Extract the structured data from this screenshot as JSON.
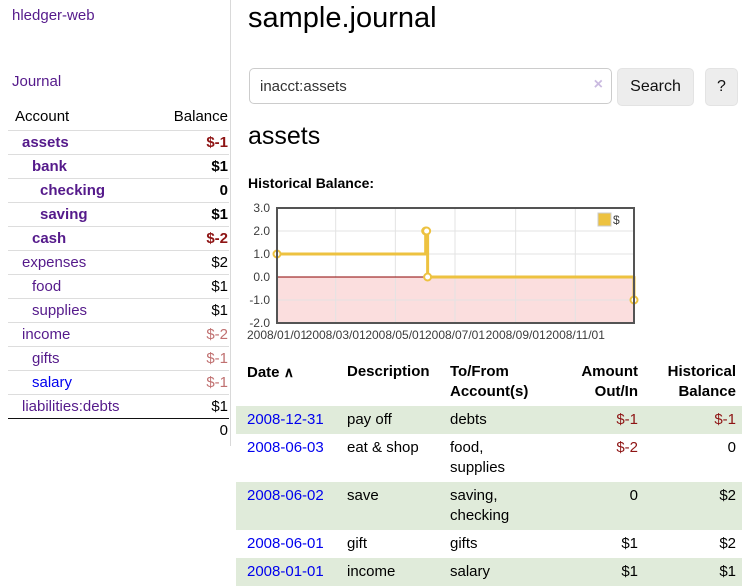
{
  "colors": {
    "link_purple": "#551a8b",
    "link_blue": "#0000ee",
    "neg_dark": "#8e1414",
    "neg_muted": "#c07070",
    "row_green": "#e0ebda",
    "chart_line": "#edc240",
    "chart_neg_fill": "#fbdede",
    "chart_zero_line": "#8b0000",
    "chart_grid": "#e3e3e3",
    "chart_border": "#545454"
  },
  "sidebar": {
    "brand": "hledger-web",
    "journal_link": "Journal",
    "accounts_table": {
      "headers": {
        "account": "Account",
        "balance": "Balance"
      },
      "rows": [
        {
          "account": "assets",
          "balance": "$-1",
          "indent": 1,
          "bold": true,
          "balance_color": "neg_dark"
        },
        {
          "account": "bank",
          "balance": "$1",
          "indent": 2,
          "bold": true
        },
        {
          "account": "checking",
          "balance": "0",
          "indent": 3,
          "bold": true
        },
        {
          "account": "saving",
          "balance": "$1",
          "indent": 3,
          "bold": true
        },
        {
          "account": "cash",
          "balance": "$-2",
          "indent": 2,
          "bold": true,
          "balance_color": "neg_dark"
        },
        {
          "account": "expenses",
          "balance": "$2",
          "indent": 1
        },
        {
          "account": "food",
          "balance": "$1",
          "indent": 2
        },
        {
          "account": "supplies",
          "balance": "$1",
          "indent": 2
        },
        {
          "account": "income",
          "balance": "$-2",
          "indent": 1,
          "balance_color": "neg_muted"
        },
        {
          "account": "gifts",
          "balance": "$-1",
          "indent": 2,
          "balance_color": "neg_muted"
        },
        {
          "account": "salary",
          "balance": "$-1",
          "indent": 2,
          "balance_color": "neg_muted",
          "link": "blue"
        },
        {
          "account": "liabilities:debts",
          "balance": "$1",
          "indent": 1
        }
      ],
      "total": "0"
    }
  },
  "header": {
    "title": "sample.journal",
    "search": {
      "value": "inacct:assets",
      "clear_icon": "×",
      "button_label": "Search",
      "help_label": "?"
    }
  },
  "main": {
    "account_heading": "assets",
    "chart_title": "Historical Balance:",
    "register_table": {
      "headers": {
        "date": "Date",
        "sort_icon": "∧",
        "description": "Description",
        "tofrom": "To/From Account(s)",
        "amount": "Amount Out/In",
        "balance": "Historical Balance"
      },
      "rows": [
        {
          "date": "2008-12-31",
          "description": "pay off",
          "tofrom": "debts",
          "amount": "$-1",
          "balance": "$-1",
          "amount_neg": true,
          "balance_neg": true
        },
        {
          "date": "2008-06-03",
          "description": "eat & shop",
          "tofrom": "food, supplies",
          "amount": "$-2",
          "balance": "0",
          "amount_neg": true,
          "balance_neg": false
        },
        {
          "date": "2008-06-02",
          "description": "save",
          "tofrom": "saving, checking",
          "amount": "0",
          "balance": "$2",
          "amount_neg": false,
          "balance_neg": false
        },
        {
          "date": "2008-06-01",
          "description": "gift",
          "tofrom": "gifts",
          "amount": "$1",
          "balance": "$2",
          "amount_neg": false,
          "balance_neg": false
        },
        {
          "date": "2008-01-01",
          "description": "income",
          "tofrom": "salary",
          "amount": "$1",
          "balance": "$1",
          "amount_neg": false,
          "balance_neg": false
        }
      ]
    }
  },
  "chart_data": {
    "type": "line",
    "step": true,
    "title": "Historical Balance:",
    "series": [
      {
        "name": "$",
        "color": "#edc240",
        "points": [
          [
            "2008-01-01",
            1
          ],
          [
            "2008-06-01",
            2
          ],
          [
            "2008-06-02",
            2
          ],
          [
            "2008-06-03",
            0
          ],
          [
            "2008-12-31",
            -1
          ]
        ]
      }
    ],
    "x_range": [
      "2008-01-01",
      "2008-12-31"
    ],
    "y_range": [
      -2.0,
      3.0
    ],
    "x_ticks": [
      "2008/01/01",
      "2008/03/01",
      "2008/05/01",
      "2008/07/01",
      "2008/09/01",
      "2008/11/01"
    ],
    "y_ticks": [
      3.0,
      2.0,
      1.0,
      0.0,
      -1.0,
      -2.0
    ],
    "legend": {
      "label": "$",
      "position": "top-right"
    },
    "grid": true,
    "negative_region_shaded": true
  }
}
